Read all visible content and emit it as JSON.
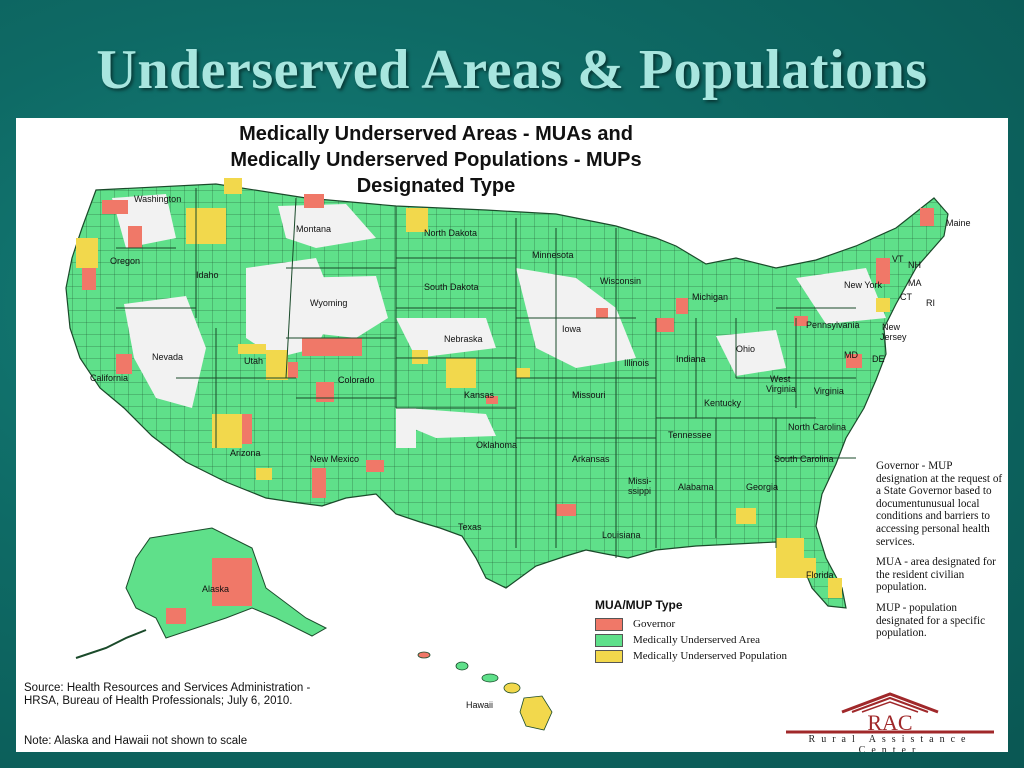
{
  "slide": {
    "title": "Underserved Areas & Populations"
  },
  "map": {
    "title_line1": "Medically Underserved Areas - MUAs and",
    "title_line2": "Medically Underserved Populations - MUPs",
    "title_line3": "Designated Type",
    "state_labels": {
      "washington": "Washington",
      "oregon": "Oregon",
      "idaho": "Idaho",
      "montana": "Montana",
      "wyoming": "Wyoming",
      "nevada": "Nevada",
      "california": "California",
      "utah": "Utah",
      "colorado": "Colorado",
      "arizona": "Arizona",
      "new_mexico": "New Mexico",
      "north_dakota": "North Dakota",
      "south_dakota": "South Dakota",
      "nebraska": "Nebraska",
      "kansas": "Kansas",
      "oklahoma": "Oklahoma",
      "texas": "Texas",
      "minnesota": "Minnesota",
      "iowa": "Iowa",
      "missouri": "Missouri",
      "arkansas": "Arkansas",
      "louisiana": "Louisiana",
      "wisconsin": "Wisconsin",
      "illinois": "Illinois",
      "michigan": "Michigan",
      "indiana": "Indiana",
      "ohio": "Ohio",
      "kentucky": "Kentucky",
      "tennessee": "Tennessee",
      "mississippi": "Missi-\nssippi",
      "mississippi_1": "Missi-",
      "mississippi_2": "ssippi",
      "alabama": "Alabama",
      "georgia": "Georgia",
      "florida": "Florida",
      "south_carolina": "South Carolina",
      "north_carolina": "North Carolina",
      "virginia": "Virginia",
      "west_virginia_1": "West",
      "west_virginia_2": "Virginia",
      "pennsylvania": "Pennsylvania",
      "new_york": "New York",
      "new_jersey_1": "New",
      "new_jersey_2": "Jersey",
      "maine": "Maine",
      "vt": "VT",
      "nh": "NH",
      "ma": "MA",
      "ct": "CT",
      "ri": "RI",
      "md": "MD",
      "de": "DE",
      "alaska": "Alaska",
      "hawaii": "Hawaii"
    },
    "colors": {
      "governor": "#f07868",
      "mua": "#5fe08a",
      "mup": "#f2d84c",
      "none": "#f2f2f2",
      "border": "#1a4a2a"
    }
  },
  "legend": {
    "heading": "MUA/MUP Type",
    "items": [
      {
        "label": "Governor",
        "color": "#f07868"
      },
      {
        "label": "Medically Underserved Area",
        "color": "#5fe08a"
      },
      {
        "label": "Medically Underserved Population",
        "color": "#f2d84c"
      }
    ]
  },
  "notes": {
    "governor": "Governor - MUP designation at the request of a State Governor based to documentunusual local conditions and barriers to accessing personal health services.",
    "mua": "MUA - area designated for the resident civilian population.",
    "mup": "MUP - population designated for a specific population."
  },
  "source": {
    "text": "Source: Health Resources and Services Administration - HRSA, Bureau of Health Professionals; July 6, 2010.",
    "note": "Note: Alaska and Hawaii not shown to scale"
  },
  "logo": {
    "name": "RAC",
    "tagline": "Rural Assistance Center"
  }
}
